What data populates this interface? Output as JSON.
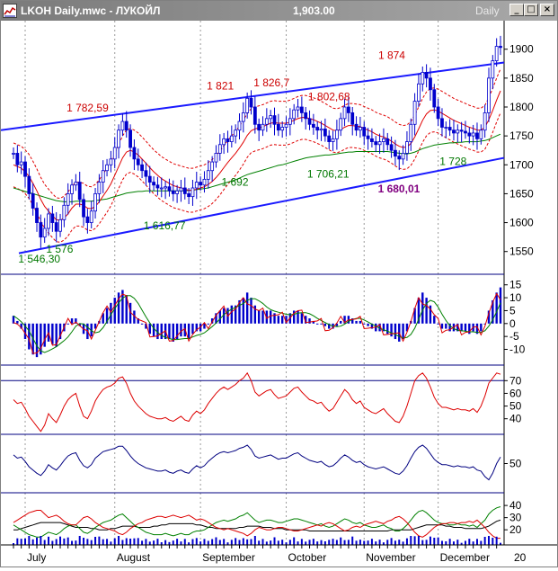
{
  "window": {
    "title": "LKOH Daily.mwc - ЛУКОЙЛ",
    "price": "1,903.00",
    "period": "Daily",
    "buttons": {
      "minimize": "_",
      "maximize": "□",
      "close": "×"
    }
  },
  "colors": {
    "price_bar": "#0000cc",
    "channel_line": "#1a1aff",
    "envelope": "#e00000",
    "ma_green": "#008000",
    "osc_red": "#dd0000",
    "osc_blue": "#000080",
    "price_label": "#cc0000",
    "support_label": "#007700",
    "special_label": "#800080"
  },
  "chart_data": {
    "type": "stock-chart",
    "symbol": "LKOH",
    "months": [
      "July",
      "August",
      "September",
      "October",
      "November",
      "December",
      "20"
    ],
    "price_axis": {
      "ticks": [
        1550,
        1600,
        1650,
        1700,
        1750,
        1800,
        1850,
        1900
      ],
      "range": [
        1520,
        1940
      ]
    },
    "macd_axis": {
      "ticks": [
        15,
        10,
        5,
        0,
        -5,
        -10
      ],
      "range": [
        -14,
        17
      ]
    },
    "rsi_axis": {
      "ticks": [
        70,
        60,
        50,
        40
      ],
      "range": [
        32,
        78
      ]
    },
    "osc4_axis": {
      "ticks": [
        50
      ],
      "range": [
        28,
        72
      ]
    },
    "adx_axis": {
      "ticks": [
        40,
        30,
        20
      ],
      "range": [
        12,
        46
      ]
    },
    "annotations": {
      "highs": [
        {
          "text": "1 782,59",
          "value": 1782.59
        },
        {
          "text": "1 821",
          "value": 1821
        },
        {
          "text": "1 826,7",
          "value": 1826.7
        },
        {
          "text": "1 802,68",
          "value": 1802.68
        },
        {
          "text": "1 874",
          "value": 1874
        }
      ],
      "lows": [
        {
          "text": "1 546,30",
          "value": 1546.3
        },
        {
          "text": "1 576",
          "value": 1576
        },
        {
          "text": "1 616,77",
          "value": 1616.77
        },
        {
          "text": "1 692",
          "value": 1692
        },
        {
          "text": "1 706,21",
          "value": 1706.21
        },
        {
          "text": "1 728",
          "value": 1728
        }
      ],
      "special": {
        "text": "1 680,01",
        "value": 1680.01
      }
    },
    "close": [
      1720,
      1700,
      1705,
      1680,
      1650,
      1625,
      1600,
      1575,
      1590,
      1615,
      1600,
      1585,
      1605,
      1630,
      1650,
      1665,
      1670,
      1640,
      1610,
      1600,
      1620,
      1650,
      1670,
      1690,
      1700,
      1710,
      1730,
      1760,
      1775,
      1760,
      1730,
      1710,
      1700,
      1690,
      1680,
      1670,
      1665,
      1660,
      1660,
      1662,
      1655,
      1650,
      1655,
      1660,
      1650,
      1645,
      1660,
      1670,
      1665,
      1675,
      1690,
      1705,
      1720,
      1735,
      1745,
      1740,
      1750,
      1760,
      1775,
      1790,
      1815,
      1800,
      1770,
      1760,
      1770,
      1780,
      1785,
      1770,
      1760,
      1765,
      1770,
      1780,
      1795,
      1800,
      1790,
      1780,
      1770,
      1765,
      1760,
      1762,
      1750,
      1740,
      1745,
      1760,
      1780,
      1800,
      1790,
      1770,
      1760,
      1765,
      1750,
      1745,
      1740,
      1735,
      1740,
      1745,
      1735,
      1725,
      1715,
      1710,
      1720,
      1740,
      1770,
      1810,
      1840,
      1860,
      1850,
      1830,
      1800,
      1780,
      1765,
      1765,
      1760,
      1755,
      1760,
      1758,
      1755,
      1750,
      1755,
      1745,
      1760,
      1790,
      1850,
      1880,
      1905,
      1903
    ],
    "ma_red": [
      1700,
      1697,
      1694,
      1688,
      1680,
      1668,
      1655,
      1640,
      1628,
      1620,
      1612,
      1605,
      1604,
      1608,
      1615,
      1625,
      1632,
      1632,
      1630,
      1625,
      1624,
      1628,
      1636,
      1646,
      1656,
      1667,
      1682,
      1697,
      1712,
      1722,
      1725,
      1722,
      1717,
      1710,
      1703,
      1695,
      1688,
      1682,
      1676,
      1672,
      1668,
      1664,
      1662,
      1660,
      1658,
      1656,
      1656,
      1658,
      1660,
      1662,
      1666,
      1671,
      1678,
      1686,
      1695,
      1704,
      1712,
      1720,
      1729,
      1739,
      1751,
      1759,
      1762,
      1764,
      1766,
      1769,
      1772,
      1773,
      1772,
      1772,
      1772,
      1774,
      1777,
      1780,
      1782,
      1782,
      1780,
      1778,
      1775,
      1772,
      1768,
      1764,
      1760,
      1759,
      1761,
      1765,
      1768,
      1768,
      1767,
      1766,
      1763,
      1760,
      1757,
      1753,
      1750,
      1748,
      1745,
      1741,
      1736,
      1732,
      1730,
      1731,
      1737,
      1748,
      1762,
      1777,
      1788,
      1794,
      1795,
      1793,
      1789,
      1785,
      1781,
      1777,
      1774,
      1771,
      1768,
      1765,
      1763,
      1760,
      1760,
      1765,
      1778,
      1794,
      1812,
      1828
    ],
    "ma_green": [
      1660,
      1658,
      1656,
      1654,
      1652,
      1650,
      1648,
      1646,
      1644,
      1642,
      1640,
      1638,
      1637,
      1636,
      1636,
      1636,
      1637,
      1637,
      1637,
      1637,
      1637,
      1638,
      1639,
      1640,
      1641,
      1643,
      1645,
      1647,
      1649,
      1651,
      1652,
      1653,
      1654,
      1654,
      1655,
      1655,
      1655,
      1655,
      1655,
      1655,
      1655,
      1655,
      1655,
      1655,
      1655,
      1656,
      1656,
      1657,
      1658,
      1659,
      1660,
      1662,
      1664,
      1666,
      1668,
      1670,
      1672,
      1674,
      1677,
      1680,
      1683,
      1685,
      1687,
      1689,
      1691,
      1693,
      1695,
      1697,
      1699,
      1700,
      1702,
      1704,
      1706,
      1708,
      1710,
      1712,
      1713,
      1714,
      1715,
      1716,
      1717,
      1717,
      1718,
      1719,
      1720,
      1721,
      1722,
      1722,
      1723,
      1723,
      1723,
      1723,
      1723,
      1723,
      1723,
      1723,
      1723,
      1722,
      1721,
      1720,
      1719,
      1719,
      1720,
      1722,
      1725,
      1728,
      1730,
      1732,
      1734,
      1735,
      1736,
      1737,
      1738,
      1738,
      1739,
      1739,
      1740,
      1740,
      1740,
      1740,
      1741,
      1742,
      1744,
      1747,
      1750,
      1753
    ],
    "macd": [
      3,
      1,
      -2,
      -6,
      -10,
      -12,
      -13,
      -12,
      -9,
      -7,
      -8,
      -9,
      -6,
      -3,
      0,
      2,
      2,
      -1,
      -4,
      -6,
      -5,
      -2,
      1,
      4,
      6,
      8,
      10,
      12,
      13,
      11,
      8,
      5,
      2,
      0,
      -2,
      -4,
      -5,
      -6,
      -6,
      -6,
      -6,
      -7,
      -6,
      -5,
      -5,
      -6,
      -4,
      -3,
      -3,
      -2,
      0,
      2,
      4,
      5,
      6,
      6,
      7,
      7,
      9,
      10,
      12,
      10,
      7,
      5,
      5,
      5,
      5,
      4,
      3,
      3,
      3,
      4,
      5,
      5,
      4,
      3,
      2,
      1,
      0,
      0,
      -1,
      -2,
      -2,
      -1,
      1,
      3,
      3,
      2,
      1,
      1,
      0,
      -1,
      -2,
      -3,
      -3,
      -3,
      -4,
      -5,
      -6,
      -7,
      -6,
      -3,
      1,
      6,
      10,
      12,
      10,
      7,
      3,
      0,
      -2,
      -2,
      -3,
      -3,
      -3,
      -3,
      -3,
      -4,
      -3,
      -4,
      -3,
      0,
      5,
      9,
      12,
      14
    ],
    "rsi": [
      55,
      52,
      53,
      48,
      42,
      38,
      34,
      30,
      35,
      44,
      40,
      37,
      43,
      50,
      55,
      58,
      60,
      50,
      42,
      40,
      46,
      54,
      59,
      63,
      65,
      66,
      68,
      72,
      73,
      68,
      60,
      54,
      50,
      47,
      44,
      42,
      41,
      40,
      40,
      41,
      39,
      38,
      40,
      42,
      39,
      38,
      43,
      46,
      44,
      47,
      52,
      56,
      60,
      63,
      65,
      63,
      65,
      67,
      70,
      72,
      76,
      70,
      61,
      58,
      60,
      62,
      63,
      59,
      56,
      57,
      58,
      61,
      64,
      65,
      61,
      58,
      55,
      54,
      52,
      53,
      49,
      46,
      48,
      53,
      58,
      63,
      60,
      55,
      52,
      54,
      49,
      47,
      45,
      44,
      46,
      48,
      44,
      41,
      38,
      37,
      42,
      50,
      60,
      70,
      74,
      76,
      72,
      65,
      57,
      52,
      49,
      49,
      48,
      47,
      48,
      47,
      47,
      46,
      48,
      45,
      50,
      58,
      68,
      72,
      76,
      75
    ],
    "osc4": [
      58,
      55,
      56,
      52,
      47,
      44,
      41,
      39,
      43,
      49,
      46,
      44,
      48,
      53,
      57,
      59,
      60,
      53,
      48,
      46,
      49,
      55,
      58,
      61,
      62,
      63,
      64,
      66,
      66,
      62,
      57,
      53,
      50,
      48,
      46,
      45,
      44,
      43,
      43,
      44,
      42,
      41,
      43,
      44,
      42,
      41,
      45,
      48,
      46,
      48,
      52,
      55,
      58,
      60,
      61,
      60,
      61,
      62,
      64,
      65,
      67,
      63,
      57,
      55,
      56,
      57,
      58,
      56,
      54,
      55,
      55,
      57,
      59,
      60,
      57,
      55,
      53,
      52,
      51,
      52,
      49,
      47,
      48,
      51,
      55,
      58,
      56,
      53,
      51,
      52,
      49,
      47,
      46,
      45,
      46,
      47,
      45,
      43,
      41,
      40,
      43,
      48,
      55,
      61,
      65,
      67,
      64,
      59,
      54,
      51,
      49,
      49,
      48,
      47,
      48,
      47,
      47,
      46,
      47,
      44,
      43,
      38,
      35,
      41,
      50,
      56
    ],
    "adx_plus": [
      24,
      22,
      20,
      18,
      16,
      15,
      14,
      14,
      16,
      18,
      17,
      16,
      18,
      21,
      23,
      24,
      24,
      21,
      18,
      17,
      19,
      22,
      24,
      26,
      27,
      28,
      30,
      32,
      33,
      30,
      27,
      24,
      22,
      20,
      18,
      17,
      16,
      16,
      16,
      17,
      16,
      15,
      16,
      17,
      16,
      16,
      18,
      19,
      19,
      20,
      22,
      24,
      26,
      27,
      28,
      27,
      28,
      29,
      31,
      32,
      34,
      31,
      28,
      26,
      27,
      28,
      28,
      27,
      26,
      26,
      27,
      28,
      29,
      29,
      28,
      27,
      26,
      25,
      24,
      25,
      23,
      22,
      23,
      25,
      27,
      29,
      28,
      26,
      25,
      26,
      24,
      23,
      22,
      22,
      23,
      24,
      22,
      21,
      19,
      19,
      21,
      24,
      28,
      32,
      35,
      36,
      34,
      31,
      28,
      26,
      25,
      25,
      24,
      24,
      25,
      24,
      24,
      23,
      24,
      22,
      25,
      28,
      33,
      36,
      38,
      39
    ],
    "adx_minus": [
      26,
      28,
      30,
      32,
      34,
      35,
      36,
      36,
      33,
      30,
      31,
      32,
      30,
      27,
      25,
      24,
      24,
      27,
      30,
      31,
      29,
      26,
      24,
      22,
      21,
      20,
      19,
      17,
      16,
      18,
      21,
      23,
      25,
      26,
      28,
      29,
      30,
      31,
      31,
      30,
      31,
      32,
      31,
      30,
      31,
      32,
      30,
      28,
      29,
      28,
      26,
      24,
      22,
      21,
      20,
      21,
      20,
      19,
      18,
      17,
      15,
      17,
      20,
      22,
      21,
      20,
      20,
      21,
      22,
      22,
      21,
      20,
      19,
      19,
      20,
      21,
      22,
      23,
      24,
      23,
      25,
      26,
      25,
      23,
      21,
      19,
      20,
      22,
      23,
      22,
      24,
      25,
      26,
      27,
      26,
      25,
      27,
      28,
      30,
      31,
      29,
      26,
      22,
      18,
      15,
      14,
      16,
      19,
      22,
      24,
      25,
      25,
      26,
      26,
      25,
      26,
      26,
      27,
      26,
      28,
      25,
      22,
      18,
      15,
      13,
      13
    ],
    "adx": [
      20,
      20,
      21,
      22,
      23,
      24,
      25,
      26,
      26,
      26,
      26,
      26,
      26,
      25,
      24,
      23,
      22,
      22,
      22,
      22,
      21,
      21,
      20,
      20,
      20,
      21,
      21,
      22,
      23,
      23,
      23,
      23,
      22,
      22,
      22,
      22,
      23,
      23,
      24,
      24,
      25,
      25,
      25,
      25,
      25,
      25,
      25,
      24,
      24,
      23,
      22,
      22,
      21,
      21,
      21,
      21,
      21,
      21,
      22,
      22,
      23,
      23,
      23,
      23,
      22,
      22,
      22,
      21,
      21,
      21,
      20,
      20,
      20,
      20,
      20,
      20,
      19,
      19,
      19,
      19,
      19,
      19,
      19,
      19,
      19,
      19,
      19,
      19,
      19,
      19,
      19,
      19,
      19,
      19,
      19,
      19,
      19,
      20,
      20,
      20,
      20,
      20,
      20,
      21,
      22,
      23,
      24,
      24,
      24,
      24,
      24,
      23,
      23,
      22,
      22,
      22,
      21,
      21,
      21,
      21,
      21,
      22,
      23,
      25,
      27,
      28
    ]
  }
}
